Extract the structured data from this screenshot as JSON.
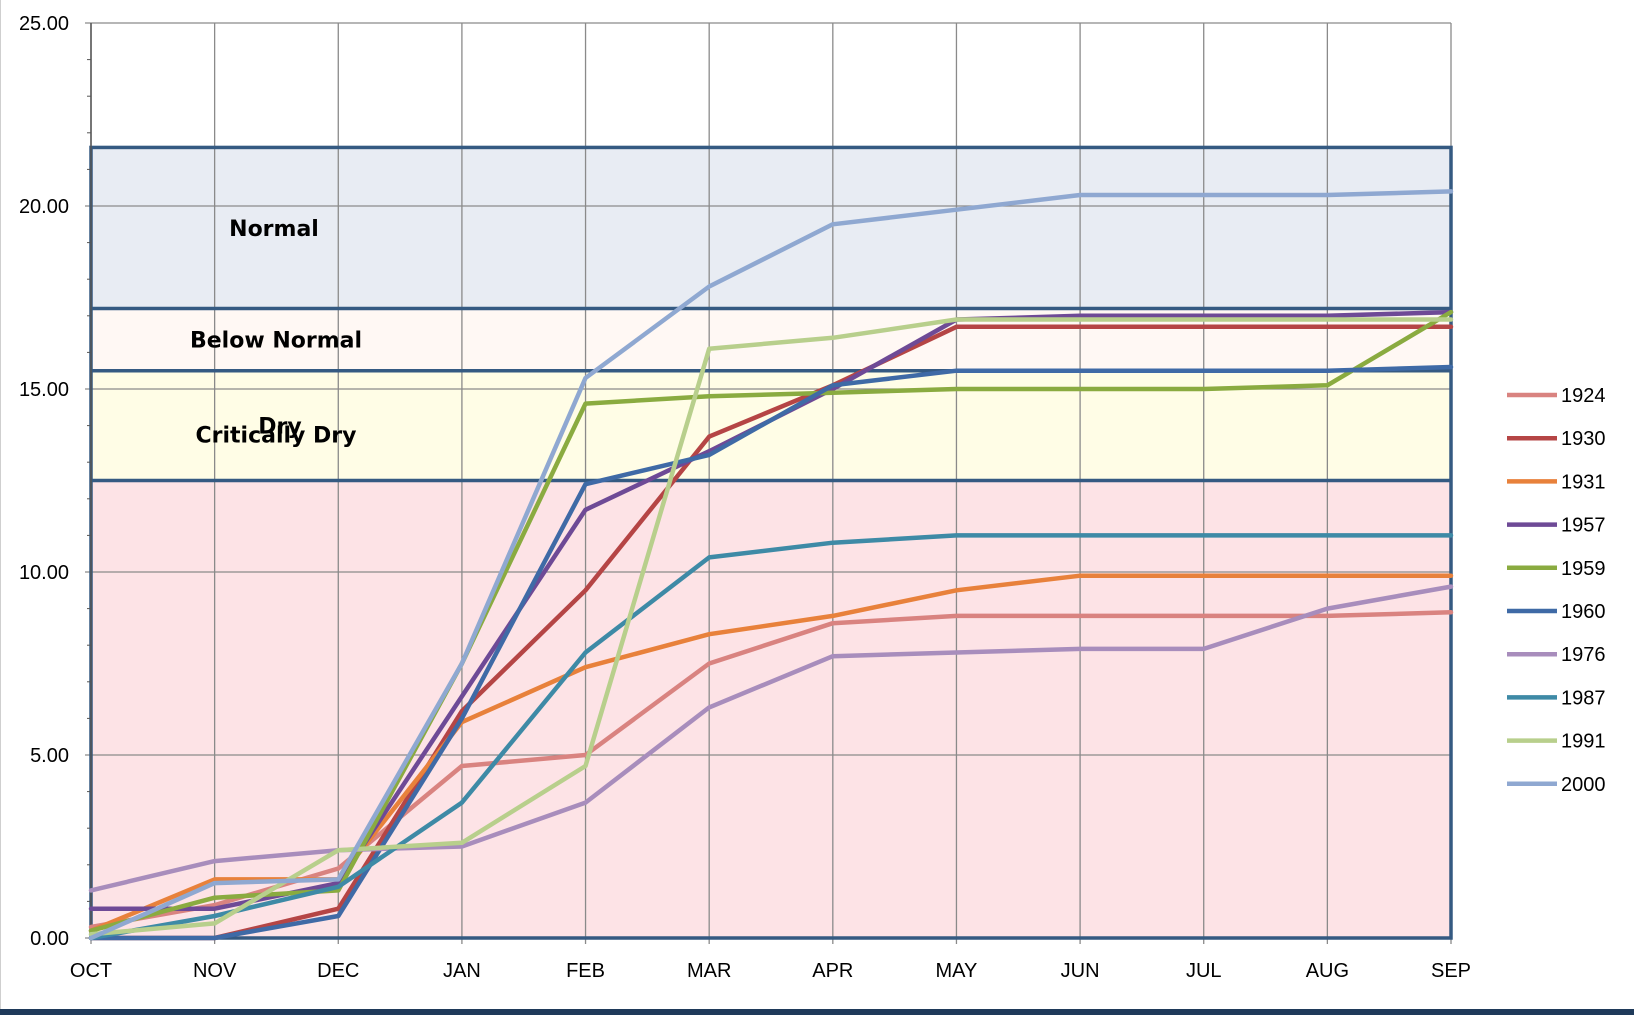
{
  "chart_data": {
    "type": "line",
    "x": [
      "OCT",
      "NOV",
      "DEC",
      "JAN",
      "FEB",
      "MAR",
      "APR",
      "MAY",
      "JUN",
      "JUL",
      "AUG",
      "SEP"
    ],
    "ylim": [
      0,
      25
    ],
    "yticks": [
      "0.00",
      "5.00",
      "10.00",
      "15.00",
      "20.00",
      "25.00"
    ],
    "grid": true,
    "legend_position": "right",
    "zones": [
      {
        "name": "Critically Dry",
        "from": 0,
        "to": 12.5,
        "color": "#fde3e6"
      },
      {
        "name": "Dry",
        "from": 12.5,
        "to": 15.5,
        "color": "#fffde6"
      },
      {
        "name": "Below Normal",
        "from": 15.5,
        "to": 17.2,
        "color": "#fff8f4"
      },
      {
        "name": "Normal",
        "from": 17.2,
        "to": 21.6,
        "color": "#e8ecf3"
      }
    ],
    "series": [
      {
        "name": "1924",
        "color": "#d98380",
        "values": [
          0.3,
          0.9,
          1.9,
          4.7,
          5.0,
          7.5,
          8.6,
          8.8,
          8.8,
          8.8,
          8.8,
          8.9
        ]
      },
      {
        "name": "1930",
        "color": "#b54545",
        "values": [
          0.0,
          0.0,
          0.8,
          6.2,
          9.5,
          13.7,
          15.1,
          16.7,
          16.7,
          16.7,
          16.7,
          16.7
        ]
      },
      {
        "name": "1931",
        "color": "#e8813b",
        "values": [
          0.2,
          1.6,
          1.6,
          5.9,
          7.4,
          8.3,
          8.8,
          9.5,
          9.9,
          9.9,
          9.9,
          9.9
        ]
      },
      {
        "name": "1957",
        "color": "#6e4a96",
        "values": [
          0.8,
          0.8,
          1.5,
          6.6,
          11.7,
          13.3,
          15.0,
          16.9,
          17.0,
          17.0,
          17.0,
          17.1
        ]
      },
      {
        "name": "1959",
        "color": "#8aab40",
        "values": [
          0.2,
          1.1,
          1.3,
          7.5,
          14.6,
          14.8,
          14.9,
          15.0,
          15.0,
          15.0,
          15.1,
          17.1
        ]
      },
      {
        "name": "1960",
        "color": "#3f6aa6",
        "values": [
          0.0,
          0.0,
          0.6,
          6.0,
          12.4,
          13.2,
          15.1,
          15.5,
          15.5,
          15.5,
          15.5,
          15.6
        ]
      },
      {
        "name": "1976",
        "color": "#a88dbc",
        "values": [
          1.3,
          2.1,
          2.4,
          2.5,
          3.7,
          6.3,
          7.7,
          7.8,
          7.9,
          7.9,
          9.0,
          9.6
        ]
      },
      {
        "name": "1987",
        "color": "#3e8aa6",
        "values": [
          0.0,
          0.6,
          1.4,
          3.7,
          7.8,
          10.4,
          10.8,
          11.0,
          11.0,
          11.0,
          11.0,
          11.0
        ]
      },
      {
        "name": "1991",
        "color": "#b8cf8c",
        "values": [
          0.1,
          0.4,
          2.4,
          2.6,
          4.7,
          16.1,
          16.4,
          16.9,
          16.9,
          16.9,
          16.9,
          16.9
        ]
      },
      {
        "name": "2000",
        "color": "#8fa8d1",
        "values": [
          0.0,
          1.5,
          1.6,
          7.5,
          15.3,
          17.8,
          19.5,
          19.9,
          20.3,
          20.3,
          20.3,
          20.4
        ]
      }
    ]
  }
}
